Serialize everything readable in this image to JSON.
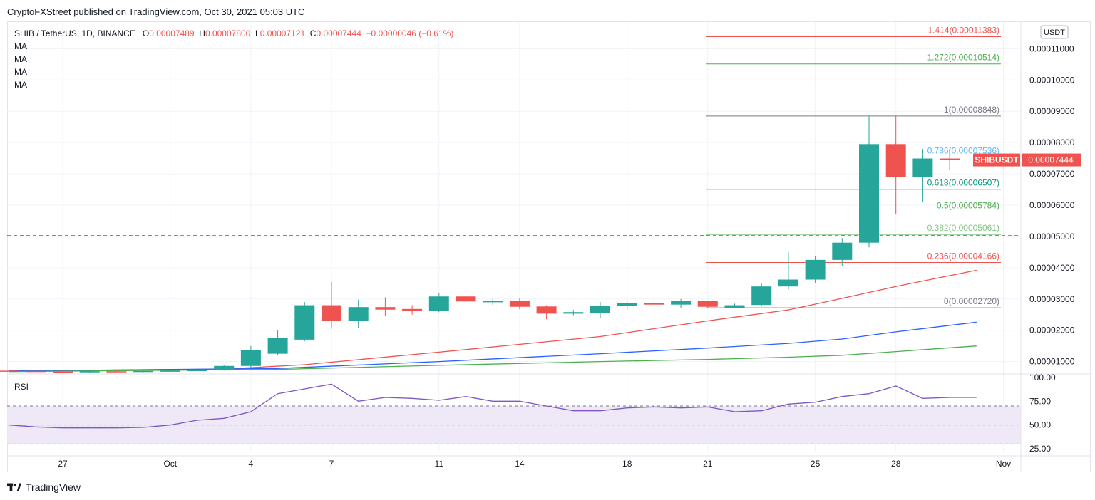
{
  "header": {
    "publisher_line": "CryptoFXStreet published on TradingView.com, Oct 30, 2021 05:03 UTC"
  },
  "legend": {
    "symbol": "SHIB / TetherUS, 1D, BINANCE",
    "o_label": "O",
    "o_value": "0.00007489",
    "h_label": "H",
    "h_value": "0.00007800",
    "l_label": "L",
    "l_value": "0.00007121",
    "c_label": "C",
    "c_value": "0.00007444",
    "change": "−0.00000046 (−0.61%)",
    "ma_labels": [
      "MA",
      "MA",
      "MA",
      "MA"
    ]
  },
  "footer": {
    "brand": "TradingView"
  },
  "colors": {
    "up": "#26a69a",
    "down": "#ef5350",
    "ma_red": "#ef5350",
    "ma_blue": "#2962ff",
    "ma_green": "#4caf50",
    "rsi": "#7e57c2",
    "rsi_band": "#ede7f6"
  },
  "chart_data": {
    "type": "candlestick",
    "symbol": "SHIBUSDT",
    "currency": "USDT",
    "current_price": "0.00007444",
    "y_ticks": [
      "0.00001000",
      "0.00002000",
      "0.00003000",
      "0.00004000",
      "0.00005000",
      "0.00006000",
      "0.00007000",
      "0.00008000",
      "0.00009000",
      "0.00010000",
      "0.00011000"
    ],
    "ylim": [
      6.5e-06,
      0.0001185
    ],
    "x_ticks": [
      {
        "label": "27",
        "day": 0
      },
      {
        "label": "Oct",
        "day": 4
      },
      {
        "label": "4",
        "day": 7
      },
      {
        "label": "7",
        "day": 10
      },
      {
        "label": "11",
        "day": 14
      },
      {
        "label": "14",
        "day": 17
      },
      {
        "label": "18",
        "day": 21
      },
      {
        "label": "21",
        "day": 24
      },
      {
        "label": "25",
        "day": 28
      },
      {
        "label": "28",
        "day": 31
      },
      {
        "label": "Nov",
        "day": 35
      }
    ],
    "xlim": [
      -2,
      36
    ],
    "candles": [
      {
        "day": -2,
        "o": 7.1e-06,
        "h": 7.4e-06,
        "l": 6.8e-06,
        "c": 7e-06
      },
      {
        "day": -1,
        "o": 7e-06,
        "h": 7.3e-06,
        "l": 6.6e-06,
        "c": 6.8e-06
      },
      {
        "day": 0,
        "o": 6.8e-06,
        "h": 7.2e-06,
        "l": 6.5e-06,
        "c": 6.6e-06
      },
      {
        "day": 1,
        "o": 6.6e-06,
        "h": 7.1e-06,
        "l": 6.5e-06,
        "c": 6.9e-06
      },
      {
        "day": 2,
        "o": 6.9e-06,
        "h": 7.2e-06,
        "l": 6.6e-06,
        "c": 6.7e-06
      },
      {
        "day": 3,
        "o": 6.7e-06,
        "h": 7.1e-06,
        "l": 6.6e-06,
        "c": 7e-06
      },
      {
        "day": 4,
        "o": 7e-06,
        "h": 7.2e-06,
        "l": 6.8e-06,
        "c": 7.1e-06
      },
      {
        "day": 5,
        "o": 7.1e-06,
        "h": 7.4e-06,
        "l": 6.9e-06,
        "c": 7.3e-06
      },
      {
        "day": 6,
        "o": 7.3e-06,
        "h": 9e-06,
        "l": 7.1e-06,
        "c": 8.6e-06
      },
      {
        "day": 7,
        "o": 8.6e-06,
        "h": 1.5e-05,
        "l": 8.2e-06,
        "c": 1.36e-05
      },
      {
        "day": 8,
        "o": 1.25e-05,
        "h": 2e-05,
        "l": 1.2e-05,
        "c": 1.75e-05
      },
      {
        "day": 9,
        "o": 1.7e-05,
        "h": 2.9e-05,
        "l": 1.65e-05,
        "c": 2.8e-05
      },
      {
        "day": 10,
        "o": 2.8e-05,
        "h": 3.55e-05,
        "l": 2.05e-05,
        "c": 2.3e-05
      },
      {
        "day": 11,
        "o": 2.3e-05,
        "h": 2.98e-05,
        "l": 2.06e-05,
        "c": 2.74e-05
      },
      {
        "day": 12,
        "o": 2.74e-05,
        "h": 3.05e-05,
        "l": 2.45e-05,
        "c": 2.66e-05
      },
      {
        "day": 13,
        "o": 2.68e-05,
        "h": 2.8e-05,
        "l": 2.5e-05,
        "c": 2.61e-05
      },
      {
        "day": 14,
        "o": 2.61e-05,
        "h": 3.18e-05,
        "l": 2.58e-05,
        "c": 3.08e-05
      },
      {
        "day": 15,
        "o": 3.08e-05,
        "h": 3.14e-05,
        "l": 2.7e-05,
        "c": 2.92e-05
      },
      {
        "day": 16,
        "o": 2.92e-05,
        "h": 3e-05,
        "l": 2.81e-05,
        "c": 2.93e-05
      },
      {
        "day": 17,
        "o": 2.95e-05,
        "h": 3.03e-05,
        "l": 2.67e-05,
        "c": 2.75e-05
      },
      {
        "day": 18,
        "o": 2.76e-05,
        "h": 2.8e-05,
        "l": 2.35e-05,
        "c": 2.53e-05
      },
      {
        "day": 19,
        "o": 2.53e-05,
        "h": 2.65e-05,
        "l": 2.48e-05,
        "c": 2.58e-05
      },
      {
        "day": 20,
        "o": 2.56e-05,
        "h": 2.9e-05,
        "l": 2.4e-05,
        "c": 2.78e-05
      },
      {
        "day": 21,
        "o": 2.78e-05,
        "h": 2.95e-05,
        "l": 2.65e-05,
        "c": 2.88e-05
      },
      {
        "day": 22,
        "o": 2.88e-05,
        "h": 2.96e-05,
        "l": 2.76e-05,
        "c": 2.82e-05
      },
      {
        "day": 23,
        "o": 2.82e-05,
        "h": 3e-05,
        "l": 2.7e-05,
        "c": 2.93e-05
      },
      {
        "day": 24,
        "o": 2.93e-05,
        "h": 2.95e-05,
        "l": 2.73e-05,
        "c": 2.75e-05
      },
      {
        "day": 25,
        "o": 2.72e-05,
        "h": 2.85e-05,
        "l": 2.7e-05,
        "c": 2.8e-05
      },
      {
        "day": 26,
        "o": 2.81e-05,
        "h": 3.5e-05,
        "l": 2.77e-05,
        "c": 3.4e-05
      },
      {
        "day": 27,
        "o": 3.4e-05,
        "h": 4.5e-05,
        "l": 3.3e-05,
        "c": 3.62e-05
      },
      {
        "day": 28,
        "o": 3.62e-05,
        "h": 4.37e-05,
        "l": 3.5e-05,
        "c": 4.25e-05
      },
      {
        "day": 29,
        "o": 4.25e-05,
        "h": 4.95e-05,
        "l": 4.05e-05,
        "c": 4.8e-05
      },
      {
        "day": 30,
        "o": 4.8e-05,
        "h": 8.85e-05,
        "l": 4.65e-05,
        "c": 7.95e-05
      },
      {
        "day": 31,
        "o": 7.95e-05,
        "h": 8.85e-05,
        "l": 5.7e-05,
        "c": 6.9e-05
      },
      {
        "day": 32,
        "o": 6.9e-05,
        "h": 7.8e-05,
        "l": 6.1e-05,
        "c": 7.49e-05
      },
      {
        "day": 33,
        "o": 7.49e-05,
        "h": 7.8e-05,
        "l": 7.12e-05,
        "c": 7.44e-05
      }
    ],
    "moving_averages": [
      {
        "name": "MA red",
        "color": "#ef5350",
        "points": [
          [
            -2,
            7e-06
          ],
          [
            6,
            7.6e-06
          ],
          [
            9,
            9e-06
          ],
          [
            14,
            1.3e-05
          ],
          [
            20,
            1.8e-05
          ],
          [
            24,
            2.3e-05
          ],
          [
            27,
            2.65e-05
          ],
          [
            29,
            3.02e-05
          ],
          [
            31,
            3.4e-05
          ],
          [
            34,
            3.92e-05
          ]
        ]
      },
      {
        "name": "MA blue",
        "color": "#2962ff",
        "points": [
          [
            -2,
            7e-06
          ],
          [
            8,
            7.8e-06
          ],
          [
            14,
            1e-05
          ],
          [
            20,
            1.25e-05
          ],
          [
            24,
            1.43e-05
          ],
          [
            27,
            1.58e-05
          ],
          [
            29,
            1.72e-05
          ],
          [
            31,
            1.95e-05
          ],
          [
            34,
            2.26e-05
          ]
        ]
      },
      {
        "name": "MA green",
        "color": "#4caf50",
        "points": [
          [
            -2,
            6.8e-06
          ],
          [
            8,
            7.5e-06
          ],
          [
            14,
            8.8e-06
          ],
          [
            20,
            1e-05
          ],
          [
            24,
            1.07e-05
          ],
          [
            27,
            1.14e-05
          ],
          [
            29,
            1.2e-05
          ],
          [
            31,
            1.32e-05
          ],
          [
            34,
            1.5e-05
          ]
        ]
      }
    ],
    "fib_levels": [
      {
        "label": "1.414(0.00011383)",
        "value": 0.00011383,
        "color": "#ef5350",
        "label_color": "#ef5350"
      },
      {
        "label": "1.272(0.00010514)",
        "value": 0.00010514,
        "color": "#4caf50",
        "label_color": "#4caf50"
      },
      {
        "label": "1(0.00008848)",
        "value": 8.848e-05,
        "color": "#787b86",
        "label_color": "#787b86"
      },
      {
        "label": "0.786(0.00007536)",
        "value": 7.536e-05,
        "color": "#64b5f6",
        "label_color": "#64b5f6"
      },
      {
        "label": "0.618(0.00006507)",
        "value": 6.507e-05,
        "color": "#089981",
        "label_color": "#089981"
      },
      {
        "label": "0.5(0.00005784)",
        "value": 5.784e-05,
        "color": "#4caf50",
        "label_color": "#4caf50"
      },
      {
        "label": "0.382(0.00005061)",
        "value": 5.061e-05,
        "color": "#81c784",
        "label_color": "#81c784"
      },
      {
        "label": "0.236(0.00004166)",
        "value": 4.166e-05,
        "color": "#ef5350",
        "label_color": "#ef5350"
      },
      {
        "label": "0(0.00002720)",
        "value": 2.72e-05,
        "color": "#787b86",
        "label_color": "#787b86"
      }
    ],
    "horizontal_dashed_level": 5.02e-05,
    "rsi": {
      "label": "RSI",
      "ticks": [
        "100.00",
        "75.00",
        "50.00",
        "25.00"
      ],
      "ylim": [
        22,
        103
      ],
      "upper_band": 70,
      "lower_band": 30,
      "mid": 50,
      "points": [
        [
          -2,
          50
        ],
        [
          -1,
          48
        ],
        [
          0,
          47
        ],
        [
          1,
          47
        ],
        [
          2,
          47
        ],
        [
          3,
          47.5
        ],
        [
          4,
          50
        ],
        [
          5,
          55
        ],
        [
          6,
          57
        ],
        [
          7,
          64
        ],
        [
          8,
          83
        ],
        [
          9,
          88
        ],
        [
          10,
          93
        ],
        [
          11,
          75
        ],
        [
          12,
          79
        ],
        [
          13,
          78
        ],
        [
          14,
          76
        ],
        [
          15,
          80
        ],
        [
          16,
          75
        ],
        [
          17,
          75
        ],
        [
          18,
          70
        ],
        [
          19,
          65
        ],
        [
          20,
          65
        ],
        [
          21,
          68
        ],
        [
          22,
          69
        ],
        [
          23,
          68
        ],
        [
          24,
          69
        ],
        [
          25,
          64
        ],
        [
          26,
          65
        ],
        [
          27,
          72
        ],
        [
          28,
          74
        ],
        [
          29,
          80
        ],
        [
          30,
          83
        ],
        [
          31,
          91
        ],
        [
          32,
          78
        ],
        [
          33,
          79
        ],
        [
          34,
          79
        ]
      ]
    }
  }
}
